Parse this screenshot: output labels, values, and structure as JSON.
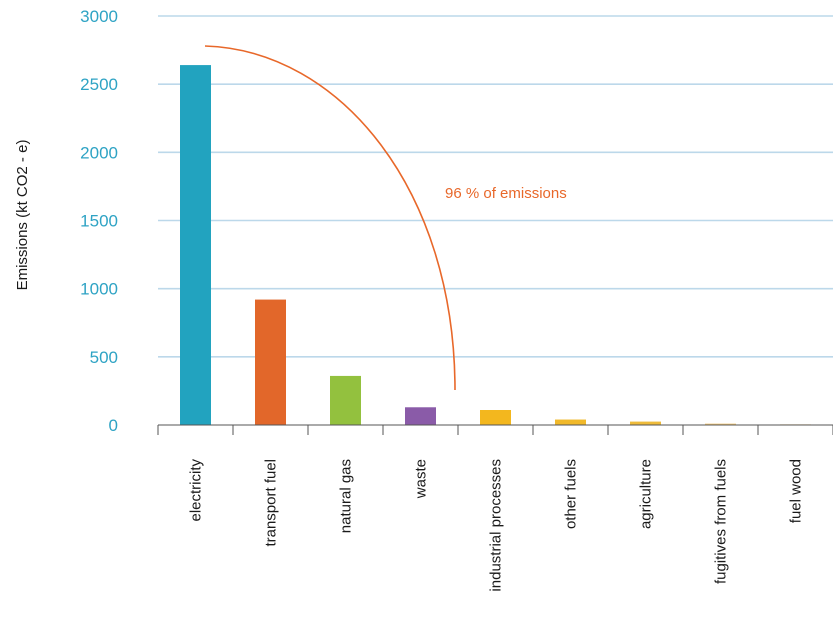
{
  "chart_data": {
    "type": "bar",
    "ylabel": "Emissions  (kt CO2 - e)",
    "ylim": [
      0,
      3000
    ],
    "yticks": [
      0,
      500,
      1000,
      1500,
      2000,
      2500,
      3000
    ],
    "grid": true,
    "categories": [
      "electricity",
      "transport fuel",
      "natural gas",
      "waste",
      "industrial processes",
      "other fuels",
      "agriculture",
      "fugitives from fuels",
      "fuel wood"
    ],
    "values": [
      2640,
      920,
      360,
      130,
      110,
      40,
      25,
      10,
      5
    ],
    "colors": [
      "#22a3bf",
      "#e2672a",
      "#93c13e",
      "#8a5ba8",
      "#f3b71e",
      "#f1b92a",
      "#eebb3a",
      "#f2c775",
      "#f5d79e"
    ],
    "annotation": {
      "text": "96 % of emissions",
      "color": "#e8682a"
    },
    "grid_color": "#bcd8ea",
    "axis_color": "#555555"
  }
}
